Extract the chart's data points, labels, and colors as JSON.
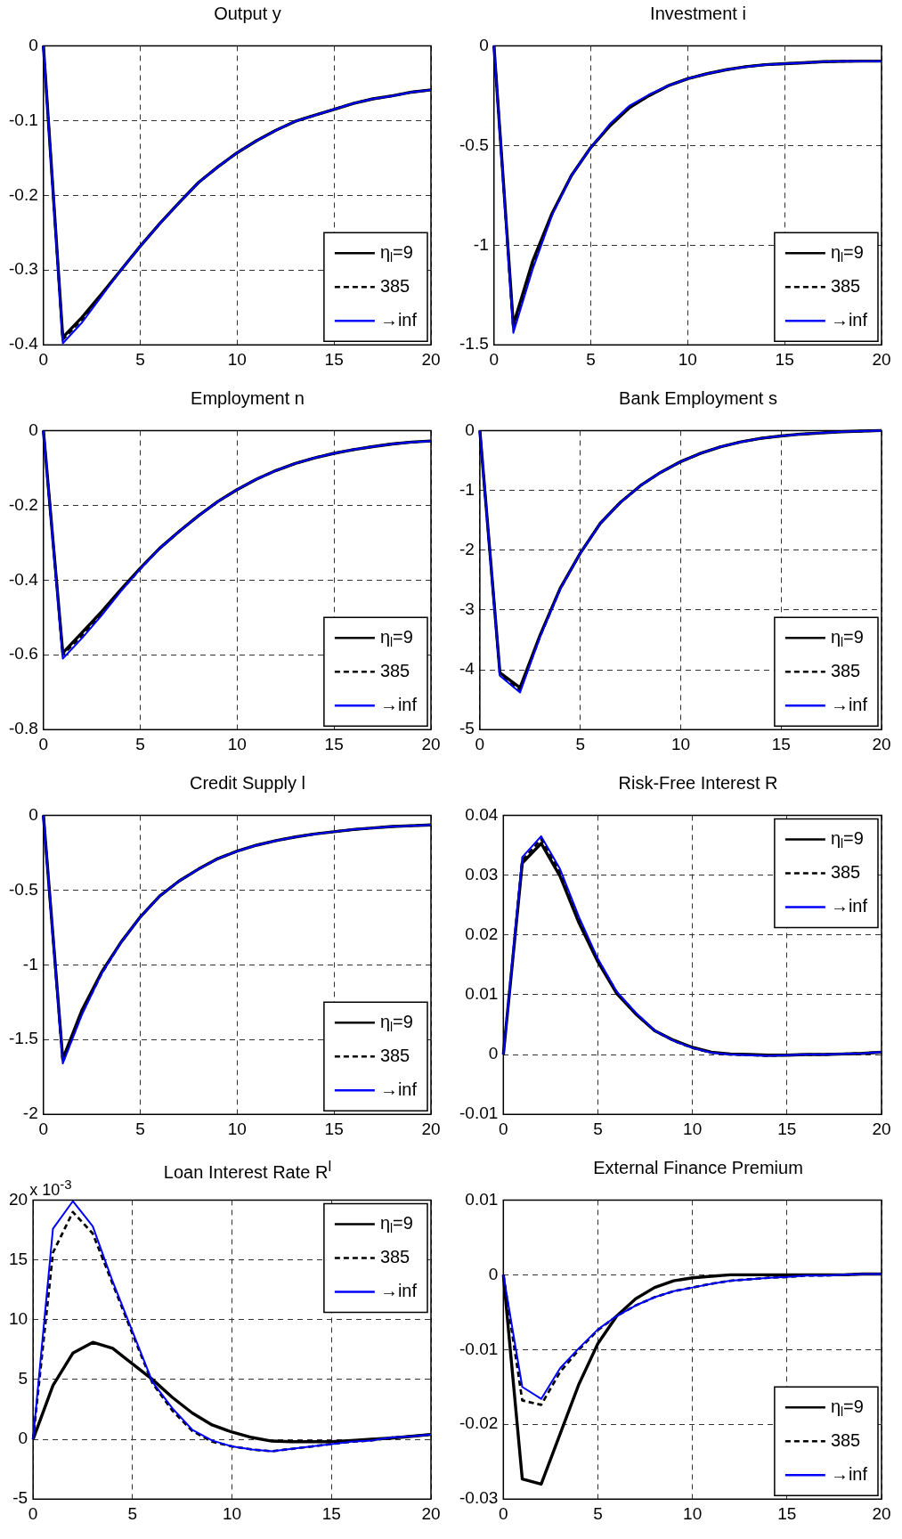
{
  "chart_data": [
    {
      "type": "line",
      "title": "Output y",
      "x": [
        0,
        1,
        2,
        3,
        4,
        5,
        6,
        7,
        8,
        9,
        10,
        11,
        12,
        13,
        14,
        15,
        16,
        17,
        18,
        19,
        20
      ],
      "xlim": [
        0,
        20
      ],
      "xticks": [
        0,
        5,
        10,
        15,
        20
      ],
      "ylim": [
        -0.4,
        0
      ],
      "yticks": [
        -0.4,
        -0.3,
        -0.2,
        -0.1,
        0
      ],
      "grid": true,
      "legend": "bottom right",
      "marker": "none",
      "series": [
        {
          "name": "η$_{l}$=9",
          "color": "#000000",
          "line_style": "solid",
          "values": [
            0,
            -0.39,
            -0.363,
            -0.332,
            -0.3,
            -0.268,
            -0.238,
            -0.21,
            -0.183,
            -0.162,
            -0.143,
            -0.127,
            -0.113,
            -0.101,
            -0.093,
            -0.085,
            -0.077,
            -0.071,
            -0.067,
            -0.062,
            -0.059
          ]
        },
        {
          "name": "385",
          "color": "#000000",
          "line_style": "dashed",
          "values": [
            0,
            -0.393,
            -0.366,
            -0.333,
            -0.3,
            -0.268,
            -0.238,
            -0.21,
            -0.183,
            -0.162,
            -0.143,
            -0.127,
            -0.113,
            -0.101,
            -0.093,
            -0.085,
            -0.077,
            -0.071,
            -0.067,
            -0.062,
            -0.059
          ]
        },
        {
          "name": "→inf",
          "color": "#0000ff",
          "line_style": "solid",
          "values": [
            0,
            -0.398,
            -0.37,
            -0.335,
            -0.3,
            -0.268,
            -0.238,
            -0.21,
            -0.183,
            -0.162,
            -0.143,
            -0.127,
            -0.113,
            -0.101,
            -0.093,
            -0.085,
            -0.077,
            -0.071,
            -0.067,
            -0.062,
            -0.059
          ]
        }
      ]
    },
    {
      "type": "line",
      "title": "Investment i",
      "x": [
        0,
        1,
        2,
        3,
        4,
        5,
        6,
        7,
        8,
        9,
        10,
        11,
        12,
        13,
        14,
        15,
        16,
        17,
        18,
        19,
        20
      ],
      "xlim": [
        0,
        20
      ],
      "xticks": [
        0,
        5,
        10,
        15,
        20
      ],
      "ylim": [
        -1.5,
        0
      ],
      "yticks": [
        -1.5,
        -1,
        -0.5,
        0
      ],
      "grid": true,
      "legend": "bottom right",
      "marker": "none",
      "series": [
        {
          "name": "η$_{l}$=9",
          "color": "#000000",
          "line_style": "solid",
          "values": [
            0,
            -1.4,
            -1.08,
            -0.84,
            -0.65,
            -0.51,
            -0.4,
            -0.31,
            -0.25,
            -0.2,
            -0.165,
            -0.14,
            -0.12,
            -0.105,
            -0.095,
            -0.09,
            -0.085,
            -0.08,
            -0.078,
            -0.077,
            -0.077
          ]
        },
        {
          "name": "385",
          "color": "#000000",
          "line_style": "dashed",
          "values": [
            0,
            -1.42,
            -1.1,
            -0.845,
            -0.65,
            -0.51,
            -0.4,
            -0.31,
            -0.25,
            -0.2,
            -0.165,
            -0.14,
            -0.12,
            -0.105,
            -0.095,
            -0.09,
            -0.085,
            -0.08,
            -0.078,
            -0.077,
            -0.077
          ]
        },
        {
          "name": "→inf",
          "color": "#0000ff",
          "line_style": "solid",
          "values": [
            0,
            -1.44,
            -1.12,
            -0.85,
            -0.65,
            -0.51,
            -0.39,
            -0.3,
            -0.245,
            -0.2,
            -0.165,
            -0.14,
            -0.12,
            -0.105,
            -0.095,
            -0.09,
            -0.085,
            -0.08,
            -0.078,
            -0.077,
            -0.077
          ]
        }
      ]
    },
    {
      "type": "line",
      "title": "Employment n",
      "x": [
        0,
        1,
        2,
        3,
        4,
        5,
        6,
        7,
        8,
        9,
        10,
        11,
        12,
        13,
        14,
        15,
        16,
        17,
        18,
        19,
        20
      ],
      "xlim": [
        0,
        20
      ],
      "xticks": [
        0,
        5,
        10,
        15,
        20
      ],
      "ylim": [
        -0.8,
        0
      ],
      "yticks": [
        -0.8,
        -0.6,
        -0.4,
        -0.2,
        0
      ],
      "grid": true,
      "legend": "bottom right",
      "marker": "none",
      "series": [
        {
          "name": "η$_{l}$=9",
          "color": "#000000",
          "line_style": "solid",
          "values": [
            0,
            -0.595,
            -0.54,
            -0.485,
            -0.425,
            -0.368,
            -0.315,
            -0.27,
            -0.228,
            -0.19,
            -0.158,
            -0.13,
            -0.107,
            -0.088,
            -0.073,
            -0.061,
            -0.051,
            -0.043,
            -0.036,
            -0.031,
            -0.028
          ]
        },
        {
          "name": "385",
          "color": "#000000",
          "line_style": "dashed",
          "values": [
            0,
            -0.6,
            -0.548,
            -0.49,
            -0.428,
            -0.37,
            -0.315,
            -0.27,
            -0.228,
            -0.19,
            -0.158,
            -0.13,
            -0.107,
            -0.088,
            -0.073,
            -0.061,
            -0.051,
            -0.043,
            -0.036,
            -0.031,
            -0.028
          ]
        },
        {
          "name": "→inf",
          "color": "#0000ff",
          "line_style": "solid",
          "values": [
            0,
            -0.61,
            -0.555,
            -0.495,
            -0.43,
            -0.37,
            -0.315,
            -0.27,
            -0.228,
            -0.19,
            -0.158,
            -0.13,
            -0.107,
            -0.088,
            -0.073,
            -0.061,
            -0.051,
            -0.043,
            -0.036,
            -0.031,
            -0.028
          ]
        }
      ]
    },
    {
      "type": "line",
      "title": "Bank Employment s",
      "x": [
        0,
        1,
        2,
        3,
        4,
        5,
        6,
        7,
        8,
        9,
        10,
        11,
        12,
        13,
        14,
        15,
        16,
        17,
        18,
        19,
        20
      ],
      "xlim": [
        0,
        20
      ],
      "xticks": [
        0,
        5,
        10,
        15,
        20
      ],
      "ylim": [
        -5,
        0
      ],
      "yticks": [
        -5,
        -4,
        -3,
        -2,
        -1,
        0
      ],
      "grid": true,
      "legend": "bottom right",
      "marker": "none",
      "series": [
        {
          "name": "η$_{l}$=9",
          "color": "#000000",
          "line_style": "solid",
          "values": [
            0,
            -4.05,
            -4.3,
            -3.42,
            -2.64,
            -2.05,
            -1.55,
            -1.2,
            -0.92,
            -0.7,
            -0.52,
            -0.38,
            -0.27,
            -0.19,
            -0.13,
            -0.09,
            -0.06,
            -0.04,
            -0.02,
            -0.01,
            0
          ]
        },
        {
          "name": "385",
          "color": "#000000",
          "line_style": "dashed",
          "values": [
            0,
            -4.08,
            -4.34,
            -3.44,
            -2.65,
            -2.05,
            -1.55,
            -1.2,
            -0.92,
            -0.7,
            -0.52,
            -0.38,
            -0.27,
            -0.19,
            -0.13,
            -0.09,
            -0.06,
            -0.04,
            -0.02,
            -0.01,
            0
          ]
        },
        {
          "name": "→inf",
          "color": "#0000ff",
          "line_style": "solid",
          "values": [
            0,
            -4.1,
            -4.38,
            -3.45,
            -2.65,
            -2.05,
            -1.55,
            -1.2,
            -0.92,
            -0.7,
            -0.52,
            -0.38,
            -0.27,
            -0.19,
            -0.13,
            -0.09,
            -0.06,
            -0.04,
            -0.02,
            -0.01,
            0
          ]
        }
      ]
    },
    {
      "type": "line",
      "title": "Credit Supply l",
      "x": [
        0,
        1,
        2,
        3,
        4,
        5,
        6,
        7,
        8,
        9,
        10,
        11,
        12,
        13,
        14,
        15,
        16,
        17,
        18,
        19,
        20
      ],
      "xlim": [
        0,
        20
      ],
      "xticks": [
        0,
        5,
        10,
        15,
        20
      ],
      "ylim": [
        -2,
        0
      ],
      "yticks": [
        -2,
        -1.5,
        -1,
        -0.5,
        0
      ],
      "grid": true,
      "legend": "bottom right",
      "marker": "none",
      "series": [
        {
          "name": "η$_{l}$=9",
          "color": "#000000",
          "line_style": "solid",
          "values": [
            0,
            -1.63,
            -1.3,
            -1.05,
            -0.85,
            -0.68,
            -0.54,
            -0.44,
            -0.36,
            -0.29,
            -0.24,
            -0.2,
            -0.17,
            -0.145,
            -0.125,
            -0.11,
            -0.095,
            -0.085,
            -0.075,
            -0.07,
            -0.065
          ]
        },
        {
          "name": "385",
          "color": "#000000",
          "line_style": "dashed",
          "values": [
            0,
            -1.65,
            -1.32,
            -1.06,
            -0.85,
            -0.68,
            -0.54,
            -0.44,
            -0.36,
            -0.29,
            -0.24,
            -0.2,
            -0.17,
            -0.145,
            -0.125,
            -0.11,
            -0.095,
            -0.085,
            -0.075,
            -0.07,
            -0.065
          ]
        },
        {
          "name": "→inf",
          "color": "#0000ff",
          "line_style": "solid",
          "values": [
            0,
            -1.66,
            -1.33,
            -1.06,
            -0.85,
            -0.68,
            -0.54,
            -0.44,
            -0.36,
            -0.29,
            -0.24,
            -0.2,
            -0.17,
            -0.145,
            -0.125,
            -0.11,
            -0.095,
            -0.085,
            -0.075,
            -0.07,
            -0.065
          ]
        }
      ]
    },
    {
      "type": "line",
      "title": "Risk-Free Interest R",
      "x": [
        0,
        1,
        2,
        3,
        4,
        5,
        6,
        7,
        8,
        9,
        10,
        11,
        12,
        13,
        14,
        15,
        16,
        17,
        18,
        19,
        20
      ],
      "xlim": [
        0,
        20
      ],
      "xticks": [
        0,
        5,
        10,
        15,
        20
      ],
      "ylim": [
        -0.01,
        0.04
      ],
      "yticks": [
        -0.01,
        0,
        0.01,
        0.02,
        0.03,
        0.04
      ],
      "grid": true,
      "legend": "top right",
      "marker": "none",
      "series": [
        {
          "name": "η$_{l}$=9",
          "color": "#000000",
          "line_style": "solid",
          "values": [
            0,
            0.032,
            0.0353,
            0.0298,
            0.022,
            0.0155,
            0.0102,
            0.0068,
            0.004,
            0.0024,
            0.0012,
            0.0004,
            0.0001,
            0,
            -0.0001,
            -0.0001,
            0,
            0,
            0.0001,
            0.0002,
            0.0004
          ]
        },
        {
          "name": "385",
          "color": "#000000",
          "line_style": "dashed",
          "values": [
            0,
            0.0325,
            0.036,
            0.0305,
            0.0225,
            0.0158,
            0.0104,
            0.0069,
            0.004,
            0.0023,
            0.0011,
            0.0003,
            0,
            -0.0001,
            -0.0002,
            -0.0001,
            0,
            0,
            0.0001,
            0.0002,
            0.0004
          ]
        },
        {
          "name": "→inf",
          "color": "#0000ff",
          "line_style": "solid",
          "values": [
            0,
            0.033,
            0.0365,
            0.031,
            0.023,
            0.016,
            0.0105,
            0.007,
            0.004,
            0.0023,
            0.0011,
            0.0003,
            0,
            -0.0001,
            -0.0002,
            -0.0001,
            0,
            0,
            0.0001,
            0.0002,
            0.0004
          ]
        }
      ]
    },
    {
      "type": "line",
      "title": "Loan Interest Rate R$^{l}$",
      "annotations": [
        "x 10$^{-3}$"
      ],
      "x": [
        0,
        1,
        2,
        3,
        4,
        5,
        6,
        7,
        8,
        9,
        10,
        11,
        12,
        13,
        14,
        15,
        16,
        17,
        18,
        19,
        20
      ],
      "xlim": [
        0,
        20
      ],
      "xticks": [
        0,
        5,
        10,
        15,
        20
      ],
      "ylim": [
        -5,
        20
      ],
      "yticks": [
        -5,
        0,
        5,
        10,
        15,
        20
      ],
      "grid": true,
      "legend": "top right",
      "marker": "none",
      "series": [
        {
          "name": "η$_{l}$=9",
          "color": "#000000",
          "line_style": "solid",
          "values": [
            0,
            4.5,
            7.2,
            8.1,
            7.6,
            6.3,
            5,
            3.5,
            2.2,
            1.2,
            0.6,
            0.15,
            -0.15,
            -0.2,
            -0.2,
            -0.2,
            -0.1,
            0,
            0.1,
            0.25,
            0.4
          ]
        },
        {
          "name": "385",
          "color": "#000000",
          "line_style": "dashed",
          "values": [
            0,
            15.6,
            19,
            17.2,
            13,
            8.8,
            4.7,
            2.4,
            0.7,
            -0.2,
            -0.6,
            -0.85,
            -1,
            -0.8,
            -0.6,
            -0.4,
            -0.2,
            -0.1,
            0.15,
            0.25,
            0.4
          ]
        },
        {
          "name": "→inf",
          "color": "#0000ff",
          "line_style": "solid",
          "values": [
            0,
            17.6,
            19.9,
            17.8,
            13.2,
            9,
            4.8,
            2.6,
            0.8,
            -0.1,
            -0.6,
            -0.85,
            -1,
            -0.8,
            -0.6,
            -0.4,
            -0.2,
            -0.1,
            0.15,
            0.25,
            0.4
          ]
        }
      ]
    },
    {
      "type": "line",
      "title": "External Finance Premium",
      "x": [
        0,
        1,
        2,
        3,
        4,
        5,
        6,
        7,
        8,
        9,
        10,
        11,
        12,
        13,
        14,
        15,
        16,
        17,
        18,
        19,
        20
      ],
      "xlim": [
        0,
        20
      ],
      "xticks": [
        0,
        5,
        10,
        15,
        20
      ],
      "ylim": [
        -0.03,
        0.01
      ],
      "yticks": [
        -0.03,
        -0.02,
        -0.01,
        0,
        0.01
      ],
      "grid": true,
      "legend": "bottom right",
      "marker": "none",
      "series": [
        {
          "name": "η$_{l}$=9",
          "color": "#000000",
          "line_style": "solid",
          "values": [
            0,
            -0.0273,
            -0.028,
            -0.0213,
            -0.0146,
            -0.0092,
            -0.0055,
            -0.0032,
            -0.0017,
            -0.0008,
            -0.0004,
            -0.0002,
            0,
            0,
            0,
            0,
            0,
            0,
            0,
            0.0001,
            0.0001
          ]
        },
        {
          "name": "385",
          "color": "#000000",
          "line_style": "dashed",
          "values": [
            0,
            -0.0168,
            -0.0174,
            -0.013,
            -0.01,
            -0.0074,
            -0.0055,
            -0.0041,
            -0.003,
            -0.0022,
            -0.0017,
            -0.0012,
            -0.0008,
            -0.0006,
            -0.0004,
            -0.0003,
            -0.0001,
            -0.0001,
            0,
            0.0001,
            0.0001
          ]
        },
        {
          "name": "→inf",
          "color": "#0000ff",
          "line_style": "solid",
          "values": [
            0,
            -0.015,
            -0.0166,
            -0.0125,
            -0.0098,
            -0.0073,
            -0.0055,
            -0.0041,
            -0.003,
            -0.0022,
            -0.0017,
            -0.0012,
            -0.0008,
            -0.0006,
            -0.0004,
            -0.0003,
            -0.0001,
            -0.0001,
            0,
            0.0001,
            0.0001
          ]
        }
      ]
    }
  ]
}
